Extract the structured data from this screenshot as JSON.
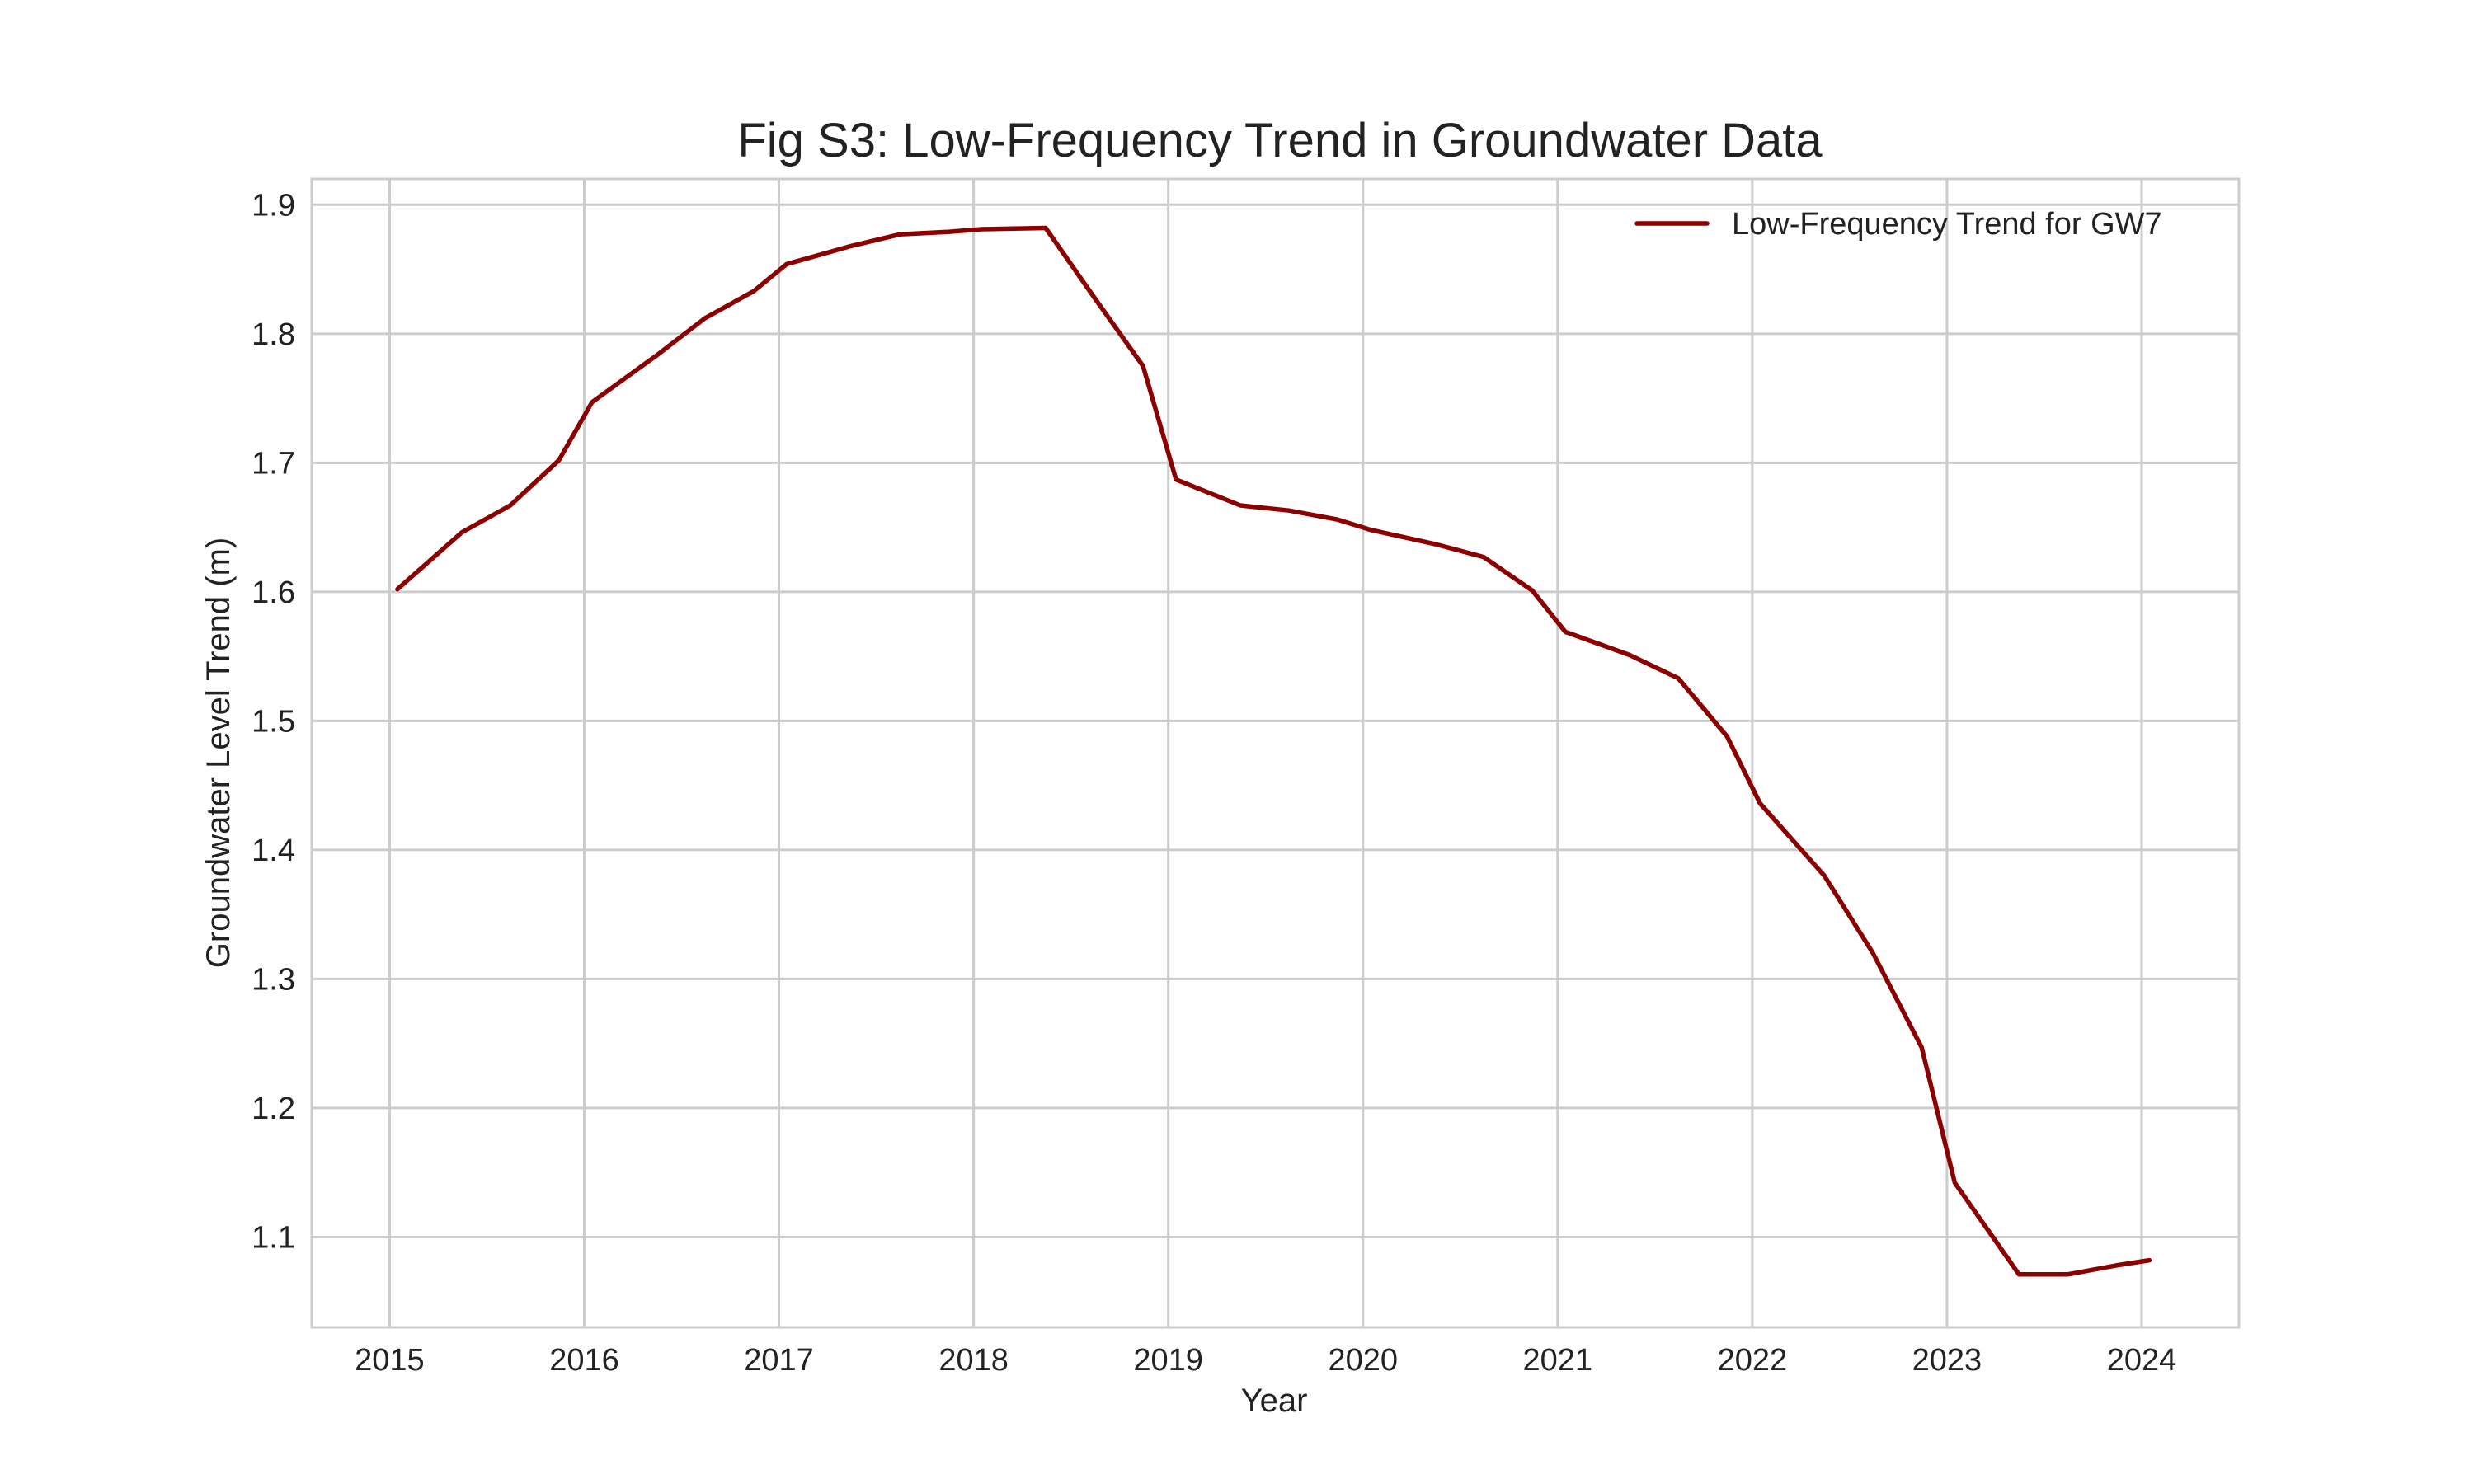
{
  "chart_data": {
    "type": "line",
    "title": "Fig S3: Low-Frequency Trend in Groundwater Data",
    "xlabel": "Year",
    "ylabel": "Groundwater Level Trend (m)",
    "xlim": [
      2014.6,
      2024.5
    ],
    "ylim": [
      1.03,
      1.92
    ],
    "x_ticks": [
      2015,
      2016,
      2017,
      2018,
      2019,
      2020,
      2021,
      2022,
      2023,
      2024
    ],
    "y_ticks": [
      1.1,
      1.2,
      1.3,
      1.4,
      1.5,
      1.6,
      1.7,
      1.8,
      1.9
    ],
    "x_tick_labels": [
      "2015",
      "2016",
      "2017",
      "2018",
      "2019",
      "2020",
      "2021",
      "2022",
      "2023",
      "2024"
    ],
    "y_tick_labels": [
      "1.1",
      "1.2",
      "1.3",
      "1.4",
      "1.5",
      "1.6",
      "1.7",
      "1.8",
      "1.9"
    ],
    "grid": true,
    "legend_position": "top-right",
    "series": [
      {
        "name": "Low-Frequency Trend for GW7",
        "color": "#8b0000",
        "x": [
          2015.04,
          2015.37,
          2015.62,
          2015.87,
          2016.04,
          2016.37,
          2016.62,
          2016.87,
          2017.04,
          2017.37,
          2017.62,
          2017.87,
          2018.04,
          2018.37,
          2018.62,
          2018.87,
          2019.04,
          2019.37,
          2019.62,
          2019.87,
          2020.04,
          2020.37,
          2020.62,
          2020.87,
          2021.04,
          2021.37,
          2021.62,
          2021.87,
          2022.04,
          2022.37,
          2022.62,
          2022.87,
          2023.04,
          2023.37,
          2023.62,
          2023.87,
          2024.04
        ],
        "y": [
          1.602,
          1.646,
          1.667,
          1.702,
          1.747,
          1.783,
          1.812,
          1.833,
          1.854,
          1.868,
          1.877,
          1.879,
          1.881,
          1.882,
          1.828,
          1.775,
          1.687,
          1.667,
          1.663,
          1.656,
          1.648,
          1.637,
          1.627,
          1.601,
          1.569,
          1.551,
          1.533,
          1.488,
          1.436,
          1.38,
          1.32,
          1.247,
          1.142,
          1.071,
          1.071,
          1.078,
          1.082
        ]
      }
    ]
  }
}
